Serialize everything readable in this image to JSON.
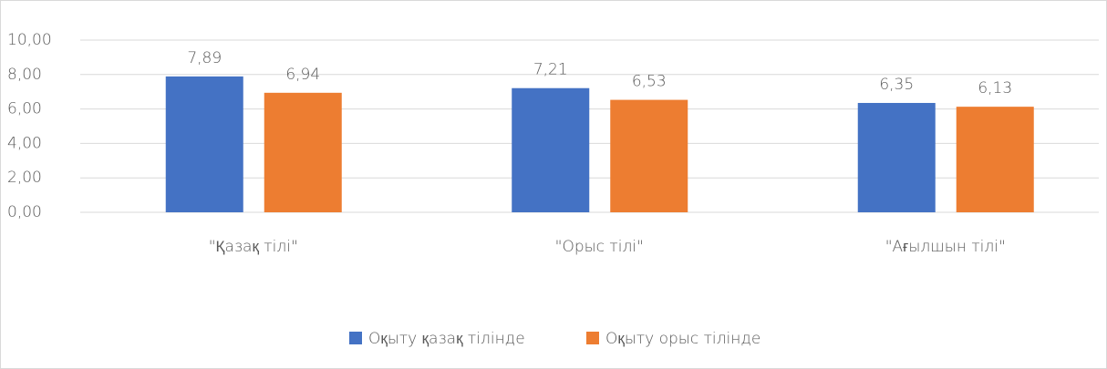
{
  "chart_data": {
    "type": "bar",
    "categories": [
      "\"Қазақ тілі\"",
      "\"Орыс тілі\"",
      "\"Ағылшын тілі\""
    ],
    "series": [
      {
        "name": "Оқыту қазақ тілінде",
        "color": "#4472c4",
        "values": [
          7.89,
          7.21,
          6.35
        ],
        "value_labels": [
          "7,89",
          "7,21",
          "6,35"
        ]
      },
      {
        "name": "Оқыту орыс тілінде",
        "color": "#ed7d31",
        "values": [
          6.94,
          6.53,
          6.13
        ],
        "value_labels": [
          "6,94",
          "6,53",
          "6,13"
        ]
      }
    ],
    "ylim": [
      0,
      10
    ],
    "yticks": [
      {
        "value": 0,
        "label": "0,00"
      },
      {
        "value": 2,
        "label": "2,00"
      },
      {
        "value": 4,
        "label": "4,00"
      },
      {
        "value": 6,
        "label": "6,00"
      },
      {
        "value": 8,
        "label": "8,00"
      },
      {
        "value": 10,
        "label": "10,00"
      }
    ],
    "grid": true,
    "legend": "bottom"
  }
}
